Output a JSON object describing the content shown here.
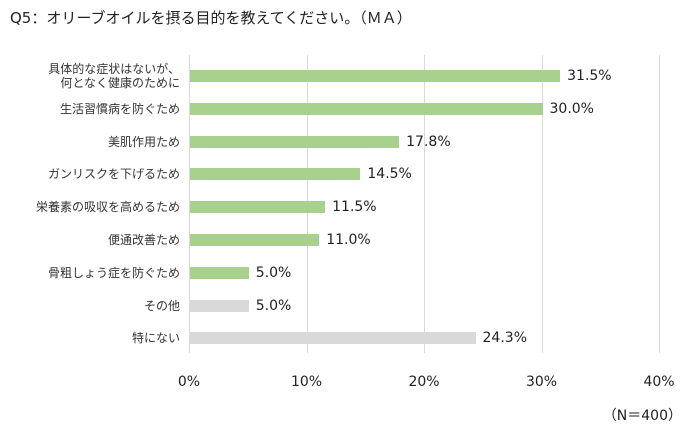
{
  "title": "Q5：オリーブオイルを摂る目的を教えてください。（ＭＡ）",
  "note": "（N＝400）",
  "colors": {
    "primary": "#a9d18e",
    "secondary": "#d9d9d9",
    "grid": "#d9d9d9"
  },
  "chart_data": {
    "type": "bar",
    "orientation": "horizontal",
    "title": "Q5：オリーブオイルを摂る目的を教えてください。（ＭＡ）",
    "xlabel": "",
    "ylabel": "",
    "xlim": [
      0,
      40
    ],
    "ticks": [
      "0%",
      "10%",
      "20%",
      "30%",
      "40%"
    ],
    "grid": true,
    "legend": null,
    "categories": [
      "具体的な症状はないが、\n何となく健康のために",
      "生活習慣病を防ぐため",
      "美肌作用ため",
      "ガンリスクを下げるため",
      "栄養素の吸収を高めるため",
      "便通改善ため",
      "骨粗しょう症を防ぐため",
      "その他",
      "特にない"
    ],
    "values": [
      31.5,
      30.0,
      17.8,
      14.5,
      11.5,
      11.0,
      5.0,
      5.0,
      24.3
    ],
    "labels": [
      "31.5%",
      "30.0%",
      "17.8%",
      "14.5%",
      "11.5%",
      "11.0%",
      "5.0%",
      "5.0%",
      "24.3%"
    ],
    "bar_colors": [
      "#a9d18e",
      "#a9d18e",
      "#a9d18e",
      "#a9d18e",
      "#a9d18e",
      "#a9d18e",
      "#a9d18e",
      "#d9d9d9",
      "#d9d9d9"
    ],
    "sample_size": "N=400"
  }
}
